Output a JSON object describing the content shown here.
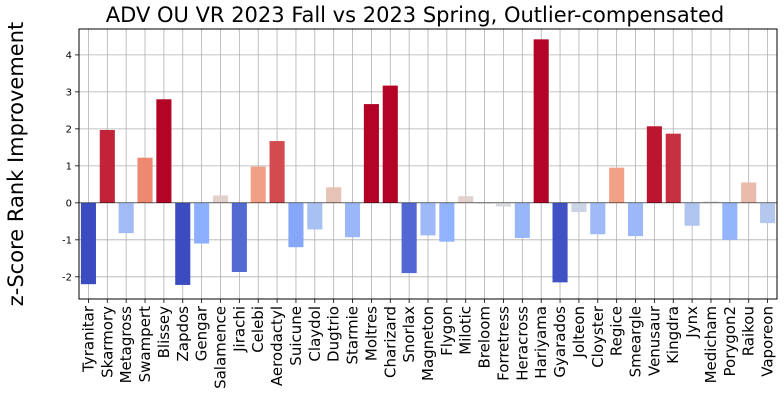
{
  "chart_data": {
    "type": "bar",
    "title": "ADV OU VR 2023 Fall vs 2023 Spring, Outlier-compensated",
    "xlabel": "",
    "ylabel": "z-Score Rank Improvement",
    "ylim": [
      -2.6,
      4.7
    ],
    "yticks": [
      -2,
      -1,
      0,
      1,
      2,
      3,
      4
    ],
    "grid": true,
    "colormap": "coolwarm",
    "color_range": [
      -2.2,
      2.2
    ],
    "categories": [
      "Tyranitar",
      "Skarmory",
      "Metagross",
      "Swampert",
      "Blissey",
      "Zapdos",
      "Gengar",
      "Salamence",
      "Jirachi",
      "Celebi",
      "Aerodactyl",
      "Suicune",
      "Claydol",
      "Dugtrio",
      "Starmie",
      "Moltres",
      "Charizard",
      "Snorlax",
      "Magneton",
      "Flygon",
      "Milotic",
      "Breloom",
      "Forretress",
      "Heracross",
      "Hariyama",
      "Gyarados",
      "Jolteon",
      "Cloyster",
      "Regice",
      "Smeargle",
      "Venusaur",
      "Kingdra",
      "Jynx",
      "Medicham",
      "Porygon2",
      "Raikou",
      "Vaporeon"
    ],
    "values": [
      -2.2,
      1.97,
      -0.82,
      1.22,
      2.8,
      -2.22,
      -1.1,
      0.2,
      -1.87,
      0.98,
      1.67,
      -1.2,
      -0.72,
      0.42,
      -0.93,
      2.67,
      3.17,
      -1.9,
      -0.88,
      -1.05,
      0.18,
      -0.03,
      -0.1,
      -0.95,
      4.42,
      -2.15,
      -0.25,
      -0.85,
      0.95,
      -0.9,
      2.07,
      1.87,
      -0.62,
      0.04,
      -1.0,
      0.55,
      -0.55
    ]
  }
}
